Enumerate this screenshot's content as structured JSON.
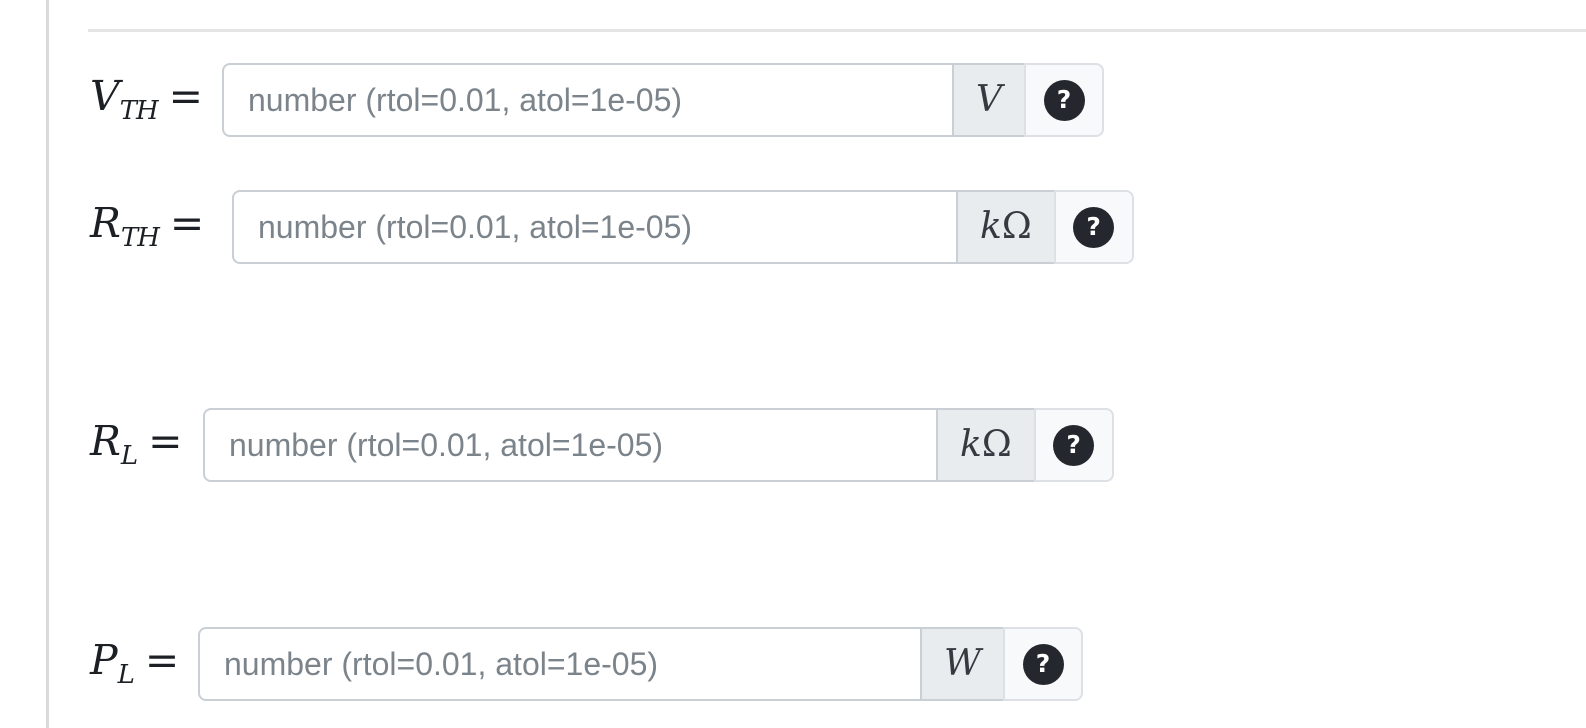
{
  "panel": {
    "help_glyph": "?",
    "answers": [
      {
        "label": {
          "symbol": "V",
          "subscript": "TH",
          "equals": "="
        },
        "input": {
          "value": "",
          "placeholder": "number (rtol=0.01, atol=1e-05)"
        },
        "unit": [
          {
            "text": "V",
            "style": "italic"
          }
        ]
      },
      {
        "label": {
          "symbol": "R",
          "subscript": "TH",
          "equals": "="
        },
        "input": {
          "value": "",
          "placeholder": "number (rtol=0.01, atol=1e-05)"
        },
        "unit": [
          {
            "text": "k",
            "style": "italic"
          },
          {
            "text": "Ω",
            "style": "upright"
          }
        ]
      },
      {
        "label": {
          "symbol": "R",
          "subscript": "L",
          "equals": "="
        },
        "input": {
          "value": "",
          "placeholder": "number (rtol=0.01, atol=1e-05)"
        },
        "unit": [
          {
            "text": "k",
            "style": "italic"
          },
          {
            "text": "Ω",
            "style": "upright"
          }
        ]
      },
      {
        "label": {
          "symbol": "P",
          "subscript": "L",
          "equals": "="
        },
        "input": {
          "value": "",
          "placeholder": "number (rtol=0.01, atol=1e-05)"
        },
        "unit": [
          {
            "text": "W",
            "style": "italic"
          }
        ]
      }
    ]
  },
  "colors": {
    "divider": "#dadada",
    "rule": "#e5e5e5",
    "input-border": "#c9cfd5",
    "unit-bg": "#e9ecef",
    "help-bg": "#f8f9fa",
    "help-border": "#dde1e6",
    "help-circle": "#24272d",
    "placeholder": "#7b838b"
  }
}
